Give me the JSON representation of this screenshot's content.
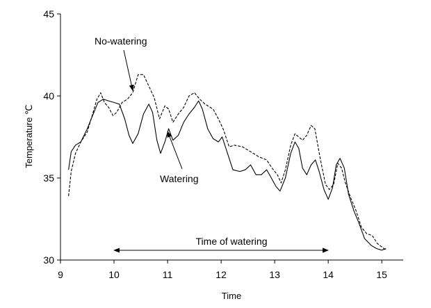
{
  "chart_data": {
    "type": "line",
    "xlabel": "Time",
    "ylabel": "Temperature ℃",
    "xlim": [
      9,
      15.4
    ],
    "ylim": [
      30,
      45
    ],
    "x_ticks": [
      9,
      10,
      11,
      12,
      13,
      14,
      15
    ],
    "y_ticks": [
      30,
      35,
      40,
      45
    ],
    "grid": false,
    "legend": "none",
    "series": [
      {
        "name": "Watering",
        "style": "solid",
        "points": [
          [
            9.15,
            35.5
          ],
          [
            9.2,
            36.6
          ],
          [
            9.28,
            37.0
          ],
          [
            9.38,
            37.2
          ],
          [
            9.5,
            38.0
          ],
          [
            9.6,
            38.8
          ],
          [
            9.7,
            39.6
          ],
          [
            9.8,
            39.8
          ],
          [
            9.9,
            39.7
          ],
          [
            10.0,
            39.6
          ],
          [
            10.1,
            39.5
          ],
          [
            10.2,
            38.6
          ],
          [
            10.28,
            37.6
          ],
          [
            10.35,
            37.1
          ],
          [
            10.45,
            37.7
          ],
          [
            10.55,
            38.9
          ],
          [
            10.65,
            39.5
          ],
          [
            10.72,
            39.0
          ],
          [
            10.8,
            37.3
          ],
          [
            10.87,
            36.5
          ],
          [
            10.95,
            37.2
          ],
          [
            11.02,
            38.0
          ],
          [
            11.1,
            37.3
          ],
          [
            11.2,
            37.6
          ],
          [
            11.3,
            38.4
          ],
          [
            11.4,
            38.9
          ],
          [
            11.5,
            39.3
          ],
          [
            11.58,
            39.7
          ],
          [
            11.65,
            39.2
          ],
          [
            11.75,
            38.0
          ],
          [
            11.85,
            37.4
          ],
          [
            11.95,
            37.2
          ],
          [
            12.02,
            37.5
          ],
          [
            12.12,
            36.5
          ],
          [
            12.22,
            35.5
          ],
          [
            12.35,
            35.4
          ],
          [
            12.45,
            35.5
          ],
          [
            12.55,
            35.8
          ],
          [
            12.65,
            35.2
          ],
          [
            12.75,
            35.2
          ],
          [
            12.85,
            35.5
          ],
          [
            12.92,
            35.1
          ],
          [
            13.02,
            34.5
          ],
          [
            13.1,
            34.2
          ],
          [
            13.2,
            35.0
          ],
          [
            13.3,
            36.5
          ],
          [
            13.38,
            37.2
          ],
          [
            13.45,
            36.8
          ],
          [
            13.52,
            35.6
          ],
          [
            13.6,
            35.2
          ],
          [
            13.68,
            35.8
          ],
          [
            13.76,
            36.1
          ],
          [
            13.83,
            35.4
          ],
          [
            13.92,
            34.3
          ],
          [
            14.0,
            33.7
          ],
          [
            14.08,
            34.4
          ],
          [
            14.15,
            35.8
          ],
          [
            14.22,
            36.2
          ],
          [
            14.3,
            35.6
          ],
          [
            14.38,
            34.0
          ],
          [
            14.48,
            33.0
          ],
          [
            14.58,
            32.2
          ],
          [
            14.68,
            31.3
          ],
          [
            14.8,
            30.9
          ],
          [
            14.9,
            30.7
          ],
          [
            15.0,
            30.6
          ],
          [
            15.08,
            30.7
          ]
        ]
      },
      {
        "name": "No-watering",
        "style": "dashed",
        "points": [
          [
            9.15,
            33.9
          ],
          [
            9.2,
            35.4
          ],
          [
            9.28,
            36.5
          ],
          [
            9.38,
            37.2
          ],
          [
            9.5,
            37.8
          ],
          [
            9.6,
            38.9
          ],
          [
            9.68,
            39.8
          ],
          [
            9.75,
            40.2
          ],
          [
            9.82,
            39.6
          ],
          [
            9.9,
            39.3
          ],
          [
            9.98,
            38.8
          ],
          [
            10.05,
            39.0
          ],
          [
            10.15,
            39.6
          ],
          [
            10.25,
            39.8
          ],
          [
            10.35,
            40.2
          ],
          [
            10.45,
            41.3
          ],
          [
            10.55,
            41.3
          ],
          [
            10.65,
            40.6
          ],
          [
            10.75,
            39.9
          ],
          [
            10.85,
            38.6
          ],
          [
            10.95,
            39.4
          ],
          [
            11.02,
            39.2
          ],
          [
            11.1,
            38.4
          ],
          [
            11.2,
            38.9
          ],
          [
            11.3,
            39.3
          ],
          [
            11.4,
            40.0
          ],
          [
            11.5,
            40.2
          ],
          [
            11.6,
            39.8
          ],
          [
            11.7,
            39.5
          ],
          [
            11.85,
            39.2
          ],
          [
            11.95,
            38.6
          ],
          [
            12.05,
            37.9
          ],
          [
            12.15,
            36.9
          ],
          [
            12.25,
            37.0
          ],
          [
            12.4,
            36.9
          ],
          [
            12.55,
            36.6
          ],
          [
            12.7,
            36.3
          ],
          [
            12.85,
            36.1
          ],
          [
            12.95,
            35.6
          ],
          [
            13.05,
            35.2
          ],
          [
            13.12,
            34.7
          ],
          [
            13.2,
            35.5
          ],
          [
            13.3,
            37.0
          ],
          [
            13.38,
            37.7
          ],
          [
            13.45,
            37.5
          ],
          [
            13.52,
            37.3
          ],
          [
            13.6,
            37.6
          ],
          [
            13.68,
            38.2
          ],
          [
            13.75,
            38.0
          ],
          [
            13.85,
            36.2
          ],
          [
            13.95,
            34.6
          ],
          [
            14.02,
            34.3
          ],
          [
            14.1,
            34.6
          ],
          [
            14.18,
            35.9
          ],
          [
            14.25,
            35.6
          ],
          [
            14.32,
            34.7
          ],
          [
            14.42,
            33.8
          ],
          [
            14.52,
            33.0
          ],
          [
            14.62,
            32.0
          ],
          [
            14.72,
            31.6
          ],
          [
            14.82,
            31.5
          ],
          [
            14.92,
            31.0
          ],
          [
            15.0,
            30.8
          ],
          [
            15.08,
            30.6
          ]
        ]
      }
    ],
    "annotations": [
      {
        "text": "No-watering",
        "target_series": "No-watering"
      },
      {
        "text": "Watering",
        "target_series": "Watering"
      },
      {
        "text": "Time of watering",
        "x_range": [
          10,
          14
        ],
        "style": "double-arrow"
      }
    ]
  }
}
